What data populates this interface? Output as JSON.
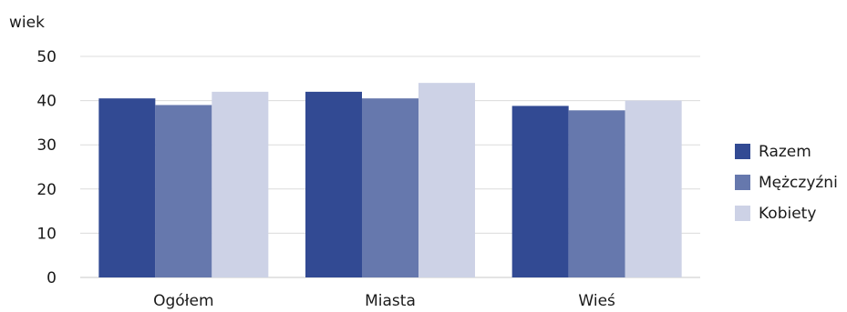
{
  "chart_data": {
    "type": "bar",
    "ylabel": "wiek",
    "xlabel": "",
    "ylim": [
      0,
      50
    ],
    "yticks": [
      0,
      10,
      20,
      30,
      40,
      50
    ],
    "grid": true,
    "legend_position": "right",
    "categories": [
      "Ogółem",
      "Miasta",
      "Wieś"
    ],
    "series": [
      {
        "name": "Razem",
        "color": "#324a93",
        "values": [
          40.5,
          42.0,
          38.8
        ]
      },
      {
        "name": "Mężczyźni",
        "color": "#6678ad",
        "values": [
          39.0,
          40.5,
          37.8
        ]
      },
      {
        "name": "Kobiety",
        "color": "#cdd2e6",
        "values": [
          42.0,
          44.0,
          40.0
        ]
      }
    ]
  }
}
